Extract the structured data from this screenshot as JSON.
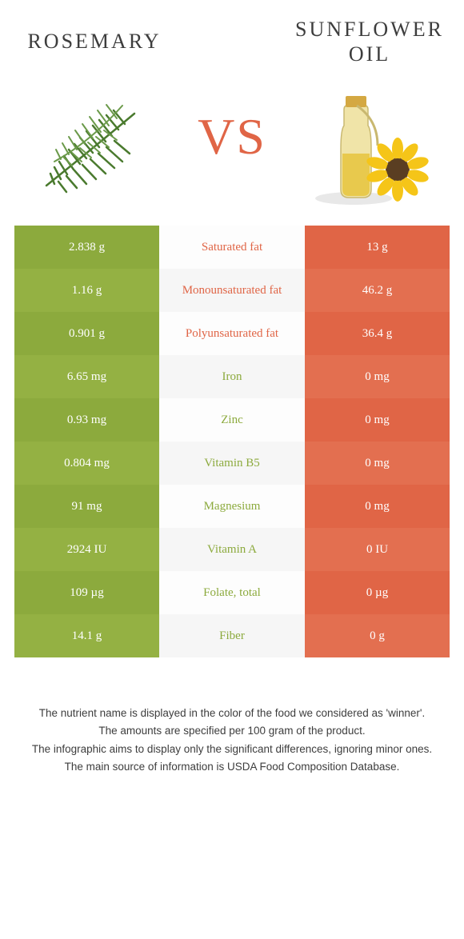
{
  "foods": {
    "left": {
      "name": "Rosemary"
    },
    "right": {
      "name": "Sunflower oil"
    }
  },
  "vs_label": "VS",
  "colors": {
    "green": "#8caa3d",
    "green_alt": "#94b143",
    "orange": "#e06546",
    "orange_alt": "#e36f50",
    "mid_bg": "#fdfdfd",
    "mid_bg_alt": "#f6f6f6",
    "text_dark": "#3d3d3d",
    "vs": "#e06546"
  },
  "rows": [
    {
      "left": "2.838 g",
      "label": "Saturated fat",
      "right": "13 g",
      "winner": "right"
    },
    {
      "left": "1.16 g",
      "label": "Monounsaturated fat",
      "right": "46.2 g",
      "winner": "right"
    },
    {
      "left": "0.901 g",
      "label": "Polyunsaturated fat",
      "right": "36.4 g",
      "winner": "right"
    },
    {
      "left": "6.65 mg",
      "label": "Iron",
      "right": "0 mg",
      "winner": "left"
    },
    {
      "left": "0.93 mg",
      "label": "Zinc",
      "right": "0 mg",
      "winner": "left"
    },
    {
      "left": "0.804 mg",
      "label": "Vitamin B5",
      "right": "0 mg",
      "winner": "left"
    },
    {
      "left": "91 mg",
      "label": "Magnesium",
      "right": "0 mg",
      "winner": "left"
    },
    {
      "left": "2924 IU",
      "label": "Vitamin A",
      "right": "0 IU",
      "winner": "left"
    },
    {
      "left": "109 µg",
      "label": "Folate, total",
      "right": "0 µg",
      "winner": "left"
    },
    {
      "left": "14.1 g",
      "label": "Fiber",
      "right": "0 g",
      "winner": "left"
    }
  ],
  "footer": {
    "line1": "The nutrient name is displayed in the color of the food we considered as 'winner'.",
    "line2": "The amounts are specified per 100 gram of the product.",
    "line3": "The infographic aims to display only the significant differences, ignoring minor ones.",
    "line4": "The main source of information is USDA Food Composition Database."
  }
}
